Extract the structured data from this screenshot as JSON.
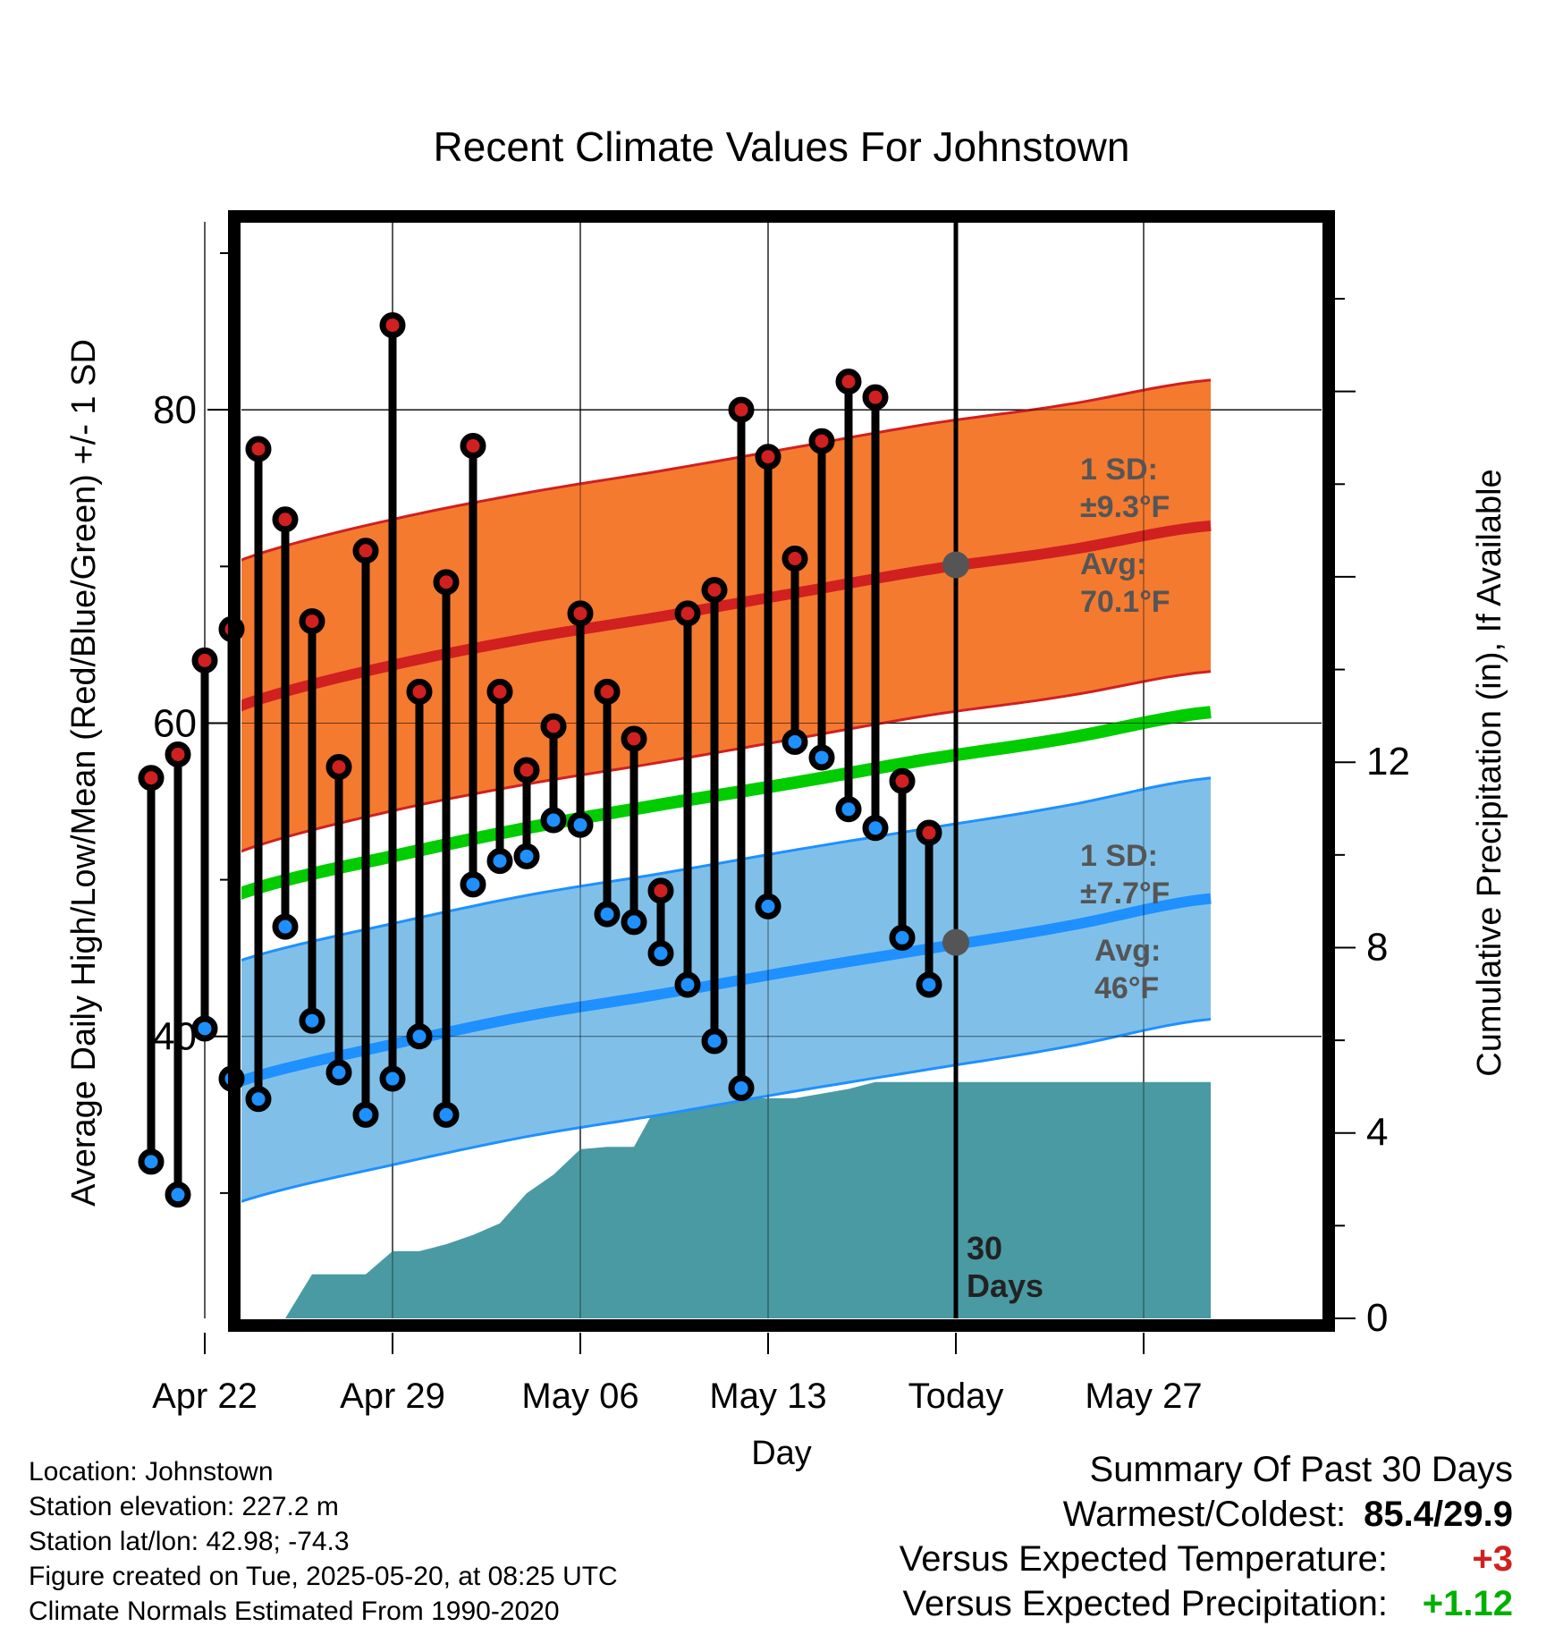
{
  "chart_data": {
    "type": "line",
    "title": "Recent Climate Values For Johnstown",
    "xlabel": "Day",
    "ylabel": "Average Daily High/Low/Mean (Red/Blue/Green) +/- 1 SD",
    "y2label": "Cumulative Precipitation (in), If Available",
    "ylim": [
      22,
      92
    ],
    "y2lim": [
      0,
      23.66
    ],
    "yticks": [
      "40",
      "60",
      "80"
    ],
    "y2ticks": [
      "0",
      "4",
      "8",
      "12"
    ],
    "xticks": [
      {
        "day": 3,
        "label": "Apr 22"
      },
      {
        "day": 10,
        "label": "Apr 29"
      },
      {
        "day": 17,
        "label": "May 06"
      },
      {
        "day": 24,
        "label": "May 13"
      },
      {
        "day": 31,
        "label": "Today"
      },
      {
        "day": 38,
        "label": "May 27"
      }
    ],
    "today_day": 31,
    "days_label": "30\nDays",
    "colors": {
      "high": "#d02020",
      "high_band": "#f47a30",
      "low": "#1e90ff",
      "low_band": "#80c0e8",
      "mean": "#00cc00",
      "precip": "#4a9aa3"
    },
    "normals": {
      "days": [
        0,
        5,
        10,
        15,
        20,
        25,
        30,
        35,
        40.5
      ],
      "high_mean": [
        58.3,
        61.5,
        63.7,
        65.4,
        66.8,
        68.3,
        69.8,
        71.0,
        72.6
      ],
      "high_sd": 9.3,
      "low_mean": [
        34.7,
        37.5,
        39.5,
        41.3,
        42.7,
        44.2,
        45.6,
        47.0,
        48.8
      ],
      "low_sd": 7.7,
      "mean_line": [
        46.5,
        49.5,
        51.5,
        53.3,
        54.8,
        56.2,
        57.7,
        59.0,
        60.7
      ]
    },
    "high_annotation": {
      "sd": "1 SD:",
      "sd_value": "±9.3",
      "avg": "Avg:",
      "avg_value": "70.1",
      "unit": "°F"
    },
    "low_annotation": {
      "sd": "1 SD:",
      "sd_value": "±7.7",
      "avg": "Avg:",
      "avg_value": "46",
      "unit": "°F"
    },
    "today_high_avg": 70.1,
    "today_low_avg": 46,
    "series": [
      {
        "name": "High",
        "x": [
          1,
          2,
          3,
          4,
          5,
          6,
          7,
          8,
          9,
          10,
          11,
          12,
          13,
          14,
          15,
          16,
          17,
          18,
          19,
          20,
          21,
          22,
          23,
          24,
          25,
          26,
          27,
          28,
          29,
          30
        ],
        "values": [
          56.5,
          58,
          64,
          66,
          77.5,
          73,
          66.5,
          57.2,
          71,
          85.4,
          62,
          69,
          77.7,
          62,
          57,
          59.8,
          67,
          62,
          59,
          49.3,
          67,
          68.5,
          80,
          77,
          70.5,
          78,
          81.8,
          80.8,
          56.3,
          53
        ]
      },
      {
        "name": "Low",
        "x": [
          1,
          2,
          3,
          4,
          5,
          6,
          7,
          8,
          9,
          10,
          11,
          12,
          13,
          14,
          15,
          16,
          17,
          18,
          19,
          20,
          21,
          22,
          23,
          24,
          25,
          26,
          27,
          28,
          29,
          30
        ],
        "values": [
          32,
          29.9,
          40.5,
          37.3,
          36,
          47,
          41,
          37.7,
          35,
          37.3,
          40,
          35,
          49.7,
          51.2,
          51.5,
          53.8,
          53.5,
          47.8,
          47.3,
          45.3,
          43.3,
          39.7,
          36.7,
          48.3,
          58.8,
          57.8,
          54.5,
          53.3,
          46.3,
          43.3
        ]
      },
      {
        "name": "Precipitation",
        "x": [
          6,
          7,
          8,
          9,
          10,
          11,
          12,
          13,
          14,
          15,
          16,
          17,
          18,
          19,
          20,
          21,
          22,
          23,
          24,
          25,
          26,
          27,
          28,
          29,
          30,
          31,
          32,
          33,
          34,
          35,
          36,
          37,
          38,
          39,
          40.5
        ],
        "values": [
          0,
          0.95,
          0.95,
          0.95,
          1.45,
          1.45,
          1.6,
          1.8,
          2.05,
          2.7,
          3.1,
          3.65,
          3.7,
          3.7,
          4.75,
          4.75,
          4.75,
          4.75,
          4.75,
          4.75,
          4.85,
          4.95,
          5.1,
          5.1,
          5.1,
          5.1,
          5.1,
          5.1,
          5.1,
          5.1,
          5.1,
          5.1,
          5.1,
          5.1,
          5.1
        ]
      }
    ]
  },
  "footer": {
    "location": "Location: Johnstown",
    "elevation": "Station elevation: 227.2 m",
    "latlon": "Station lat/lon: 42.98; -74.3",
    "created": "Figure created on Tue, 2025-05-20, at 08:25 UTC",
    "normals": "Climate Normals Estimated From 1990-2020"
  },
  "summary": {
    "title": "Summary Of Past 30 Days",
    "warmest_label": "Warmest/Coldest:",
    "warmest_value": "85.4/29.9",
    "temp_label": "Versus Expected Temperature:",
    "temp_value": "+3",
    "temp_color": "#d02020",
    "precip_label": "Versus Expected Precipitation:",
    "precip_value": "+1.12",
    "precip_color": "#00b000"
  }
}
